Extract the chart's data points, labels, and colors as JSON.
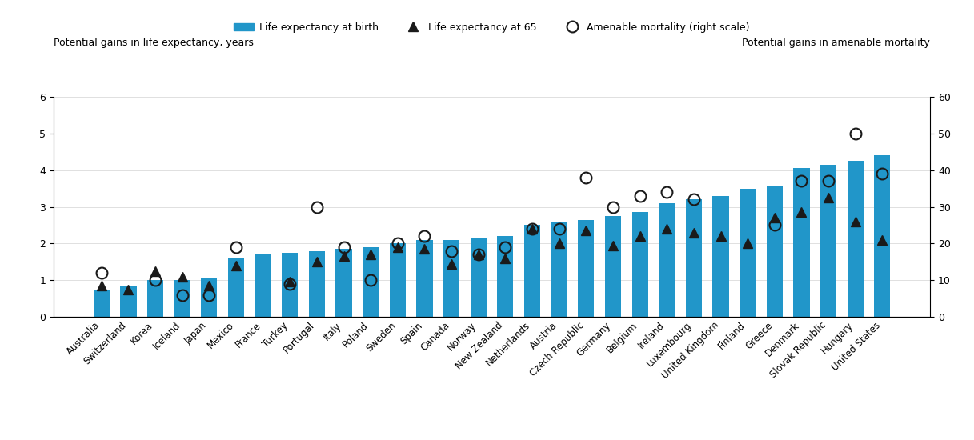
{
  "countries": [
    "Australia",
    "Switzerland",
    "Korea",
    "Iceland",
    "Japan",
    "Mexico",
    "France",
    "Turkey",
    "Portugal",
    "Italy",
    "Poland",
    "Sweden",
    "Spain",
    "Canada",
    "Norway",
    "New Zealand",
    "Netherlands",
    "Austria",
    "Czech Republic",
    "Germany",
    "Belgium",
    "Ireland",
    "Luxembourg",
    "United Kingdom",
    "Finland",
    "Greece",
    "Denmark",
    "Slovak Republic",
    "Hungary",
    "United States"
  ],
  "life_expectancy_birth": [
    0.75,
    0.85,
    1.0,
    1.0,
    1.05,
    1.6,
    1.7,
    1.75,
    1.8,
    1.85,
    1.9,
    2.0,
    2.1,
    2.1,
    2.15,
    2.2,
    2.5,
    2.6,
    2.65,
    2.75,
    2.85,
    3.1,
    3.2,
    3.3,
    3.5,
    3.55,
    4.05,
    4.15,
    4.25,
    4.4
  ],
  "life_expectancy_65": [
    0.85,
    0.75,
    1.25,
    1.1,
    0.85,
    1.4,
    null,
    0.95,
    1.5,
    1.65,
    1.7,
    1.9,
    1.85,
    1.45,
    1.7,
    1.6,
    2.4,
    2.0,
    2.35,
    1.95,
    2.2,
    2.4,
    2.3,
    2.2,
    2.0,
    2.7,
    2.85,
    3.25,
    2.6,
    2.1
  ],
  "amenable_mortality": [
    12,
    null,
    10,
    6,
    6,
    19,
    null,
    9,
    30,
    19,
    10,
    20,
    22,
    18,
    17,
    19,
    24,
    24,
    38,
    30,
    33,
    34,
    32,
    null,
    null,
    25,
    37,
    37,
    50,
    39
  ],
  "bar_color": "#2196C9",
  "triangle_color": "#1a1a1a",
  "circle_color": "#1a1a1a",
  "left_ylabel": "Potential gains in life expectancy, years",
  "right_ylabel": "Potential gains in amenable mortality",
  "left_ylim": [
    0,
    6
  ],
  "right_ylim": [
    0,
    60
  ],
  "left_yticks": [
    0,
    1,
    2,
    3,
    4,
    5,
    6
  ],
  "right_yticks": [
    0,
    10,
    20,
    30,
    40,
    50,
    60
  ],
  "legend_labels": [
    "Life expectancy at birth",
    "Life expectancy at 65",
    "Amenable mortality (right scale)"
  ]
}
